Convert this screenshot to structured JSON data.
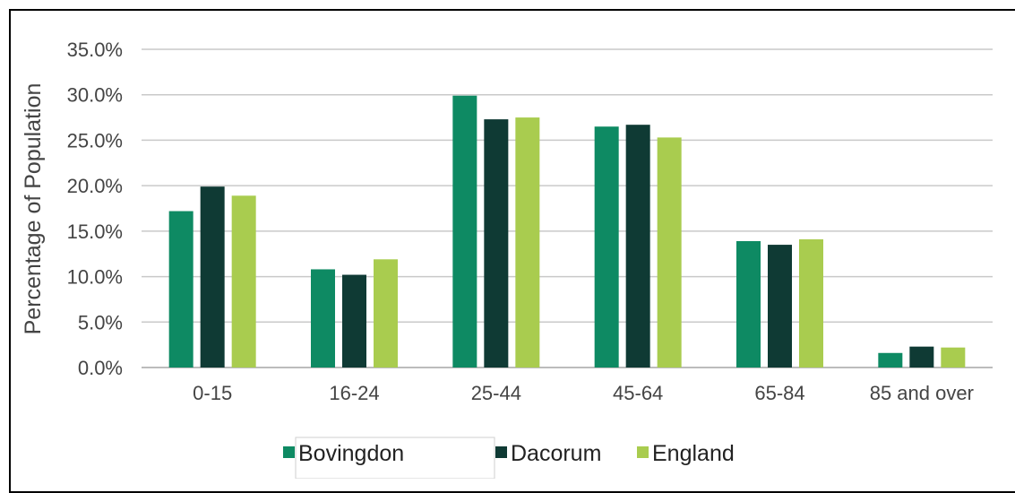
{
  "chart_data": {
    "type": "bar",
    "title": "",
    "xlabel": "",
    "ylabel": "Percentage of Population",
    "ylim": [
      0,
      35
    ],
    "yticks": [
      "0.0%",
      "5.0%",
      "10.0%",
      "15.0%",
      "20.0%",
      "25.0%",
      "30.0%",
      "35.0%"
    ],
    "categories": [
      "0-15",
      "16-24",
      "25-44",
      "45-64",
      "65-84",
      "85 and over"
    ],
    "series": [
      {
        "name": "Bovingdon",
        "color": "#0e8a63",
        "values": [
          17.2,
          10.8,
          29.9,
          26.5,
          13.9,
          1.6
        ]
      },
      {
        "name": "Dacorum",
        "color": "#0f3a34",
        "values": [
          19.9,
          10.2,
          27.3,
          26.7,
          13.5,
          2.3
        ]
      },
      {
        "name": "England",
        "color": "#a9cc4f",
        "values": [
          18.9,
          11.9,
          27.5,
          25.3,
          14.1,
          2.2
        ]
      }
    ],
    "grid": true,
    "legend_position": "bottom"
  }
}
